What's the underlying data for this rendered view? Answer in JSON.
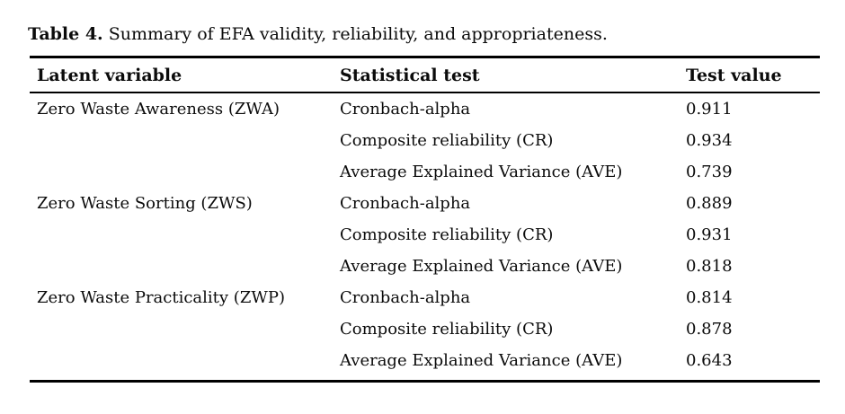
{
  "caption": {
    "label": "Table 4.",
    "text": " Summary of EFA validity, reliability, and appropriateness."
  },
  "table": {
    "columns": [
      "Latent variable",
      "Statistical test",
      "Test value"
    ],
    "rows": [
      {
        "latent": "Zero Waste Awareness (ZWA)",
        "test": "Cronbach-alpha",
        "value": "0.911"
      },
      {
        "latent": "",
        "test": "Composite reliability (CR)",
        "value": "0.934"
      },
      {
        "latent": "",
        "test": "Average Explained Variance (AVE)",
        "value": "0.739"
      },
      {
        "latent": "Zero Waste Sorting (ZWS)",
        "test": "Cronbach-alpha",
        "value": "0.889"
      },
      {
        "latent": "",
        "test": "Composite reliability (CR)",
        "value": "0.931"
      },
      {
        "latent": "",
        "test": "Average Explained Variance (AVE)",
        "value": "0.818"
      },
      {
        "latent": "Zero Waste Practicality (ZWP)",
        "test": "Cronbach-alpha",
        "value": "0.814"
      },
      {
        "latent": "",
        "test": "Composite reliability (CR)",
        "value": "0.878"
      },
      {
        "latent": "",
        "test": "Average Explained Variance (AVE)",
        "value": "0.643"
      }
    ]
  }
}
